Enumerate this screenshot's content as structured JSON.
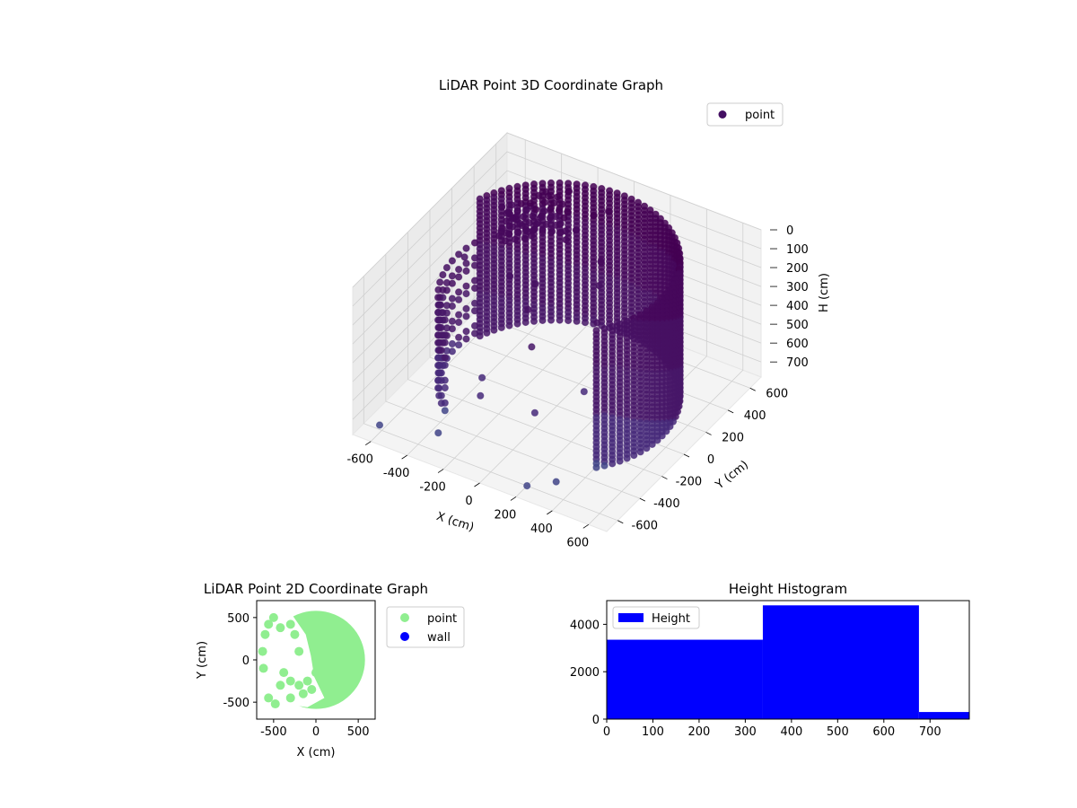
{
  "chart_data": [
    {
      "type": "scatter3d",
      "title": "LiDAR Point 3D Coordinate Graph",
      "xlabel": "X (cm)",
      "ylabel": "Y (cm)",
      "zlabel": "H (cm)",
      "xlim": [
        -700,
        700
      ],
      "ylim": [
        -700,
        700
      ],
      "zlim": [
        780,
        0
      ],
      "xticks": [
        "-600",
        "-400",
        "-200",
        "0",
        "200",
        "400",
        "600"
      ],
      "yticks": [
        "-600",
        "-400",
        "-200",
        "0",
        "200",
        "400",
        "600"
      ],
      "zticks": [
        "0",
        "100",
        "200",
        "300",
        "400",
        "500",
        "600",
        "700"
      ],
      "legend": {
        "position": "top-right",
        "entries": [
          "point"
        ]
      },
      "grid": true,
      "color_map": "viridis",
      "series": [
        {
          "name": "point",
          "description_shape": "cylindrical wall, radius ~580 cm, heights 0-730 cm, plus scattered interior points",
          "wall_angle_range_deg": [
            -40,
            160
          ],
          "wall_radius": 580,
          "wall_height_range": [
            0,
            730
          ],
          "extra_points": [
            [
              -600,
              150,
              300
            ],
            [
              -580,
              -100,
              400
            ],
            [
              -520,
              350,
              250
            ],
            [
              -480,
              420,
              200
            ],
            [
              -450,
              500,
              180
            ],
            [
              -400,
              560,
              120
            ],
            [
              -380,
              200,
              350
            ],
            [
              -300,
              300,
              420
            ],
            [
              -250,
              150,
              450
            ],
            [
              -200,
              -350,
              500
            ],
            [
              -150,
              420,
              150
            ],
            [
              -100,
              500,
              100
            ],
            [
              -50,
              550,
              90
            ],
            [
              0,
              400,
              250
            ],
            [
              50,
              300,
              300
            ],
            [
              100,
              200,
              420
            ],
            [
              -200,
              100,
              600
            ],
            [
              0,
              -200,
              700
            ],
            [
              150,
              0,
              650
            ],
            [
              -350,
              -500,
              760
            ],
            [
              200,
              -600,
              780
            ],
            [
              -600,
              -620,
              740
            ],
            [
              300,
              -500,
              780
            ],
            [
              -300,
              -200,
              720
            ]
          ]
        }
      ]
    },
    {
      "type": "scatter",
      "title": "LiDAR Point 2D Coordinate Graph",
      "xlabel": "X (cm)",
      "ylabel": "Y (cm)",
      "xlim": [
        -700,
        700
      ],
      "ylim": [
        -700,
        700
      ],
      "xticks": [
        "-500",
        "0",
        "500"
      ],
      "yticks": [
        "-500",
        "0",
        "500"
      ],
      "legend": {
        "position": "outside-right",
        "entries": [
          "point",
          "wall"
        ]
      },
      "series": [
        {
          "name": "point",
          "color": "#90ee90"
        },
        {
          "name": "wall",
          "color": "#0000ff"
        }
      ]
    },
    {
      "type": "bar",
      "title": "Height Histogram",
      "xlabel": "",
      "ylabel": "",
      "xlim": [
        0,
        785
      ],
      "ylim": [
        0,
        5000
      ],
      "xticks": [
        "0",
        "100",
        "200",
        "300",
        "400",
        "500",
        "600",
        "700"
      ],
      "yticks": [
        "0",
        "2000",
        "4000"
      ],
      "legend": {
        "position": "top-left",
        "entries": [
          "Height"
        ]
      },
      "bins": [
        {
          "start": 0,
          "end": 338,
          "count": 3350
        },
        {
          "start": 338,
          "end": 676,
          "count": 4800
        },
        {
          "start": 676,
          "end": 785,
          "count": 300
        }
      ],
      "series": [
        {
          "name": "Height",
          "color": "#0000ff"
        }
      ]
    }
  ]
}
